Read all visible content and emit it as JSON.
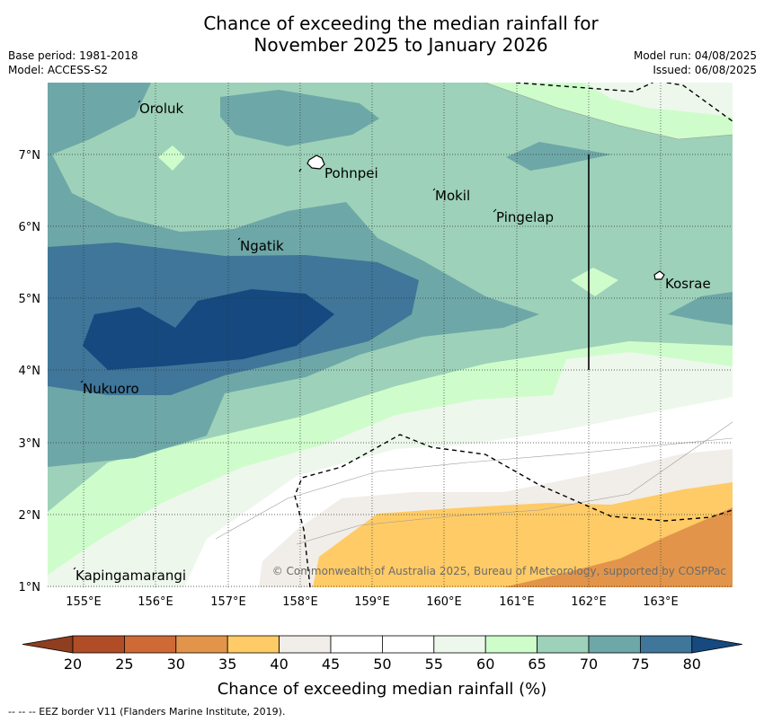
{
  "title_line1": "Chance of exceeding the median rainfall for",
  "title_line2": "November 2025 to January 2026",
  "base_period": "Base period: 1981-2018",
  "model": "Model: ACCESS-S2",
  "model_run": "Model run: 04/08/2025",
  "issued": "Issued: 06/08/2025",
  "copyright": "© Commonwealth of Australia 2025, Bureau of Meteorology, supported by COSPPac",
  "footer": "--  --  -- EEZ border V11 (Flanders Marine Institute, 2019).",
  "lat_ticks": [
    "1°N",
    "2°N",
    "3°N",
    "4°N",
    "5°N",
    "6°N",
    "7°N"
  ],
  "lon_ticks": [
    "155°E",
    "156°E",
    "157°E",
    "158°E",
    "159°E",
    "160°E",
    "161°E",
    "162°E",
    "163°E"
  ],
  "places": [
    "Oroluk",
    "Pohnpei",
    "Mokil",
    "Pingelap",
    "Ngatik",
    "Kosrae",
    "Nukuoro",
    "Kapingamarangi"
  ],
  "colorbar": {
    "label": "Chance of exceeding median rainfall (%)",
    "ticks": [
      "20",
      "25",
      "30",
      "35",
      "40",
      "45",
      "50",
      "55",
      "60",
      "65",
      "70",
      "75",
      "80"
    ],
    "colors": [
      "#8f3e1f",
      "#b14d26",
      "#cd6a35",
      "#e2954a",
      "#fecb66",
      "#f1ede8",
      "#ffffff",
      "#ffffff",
      "#edf7ec",
      "#cefdcb",
      "#9dd1b9",
      "#6ea7a7",
      "#3f7699",
      "#15497f"
    ]
  }
}
